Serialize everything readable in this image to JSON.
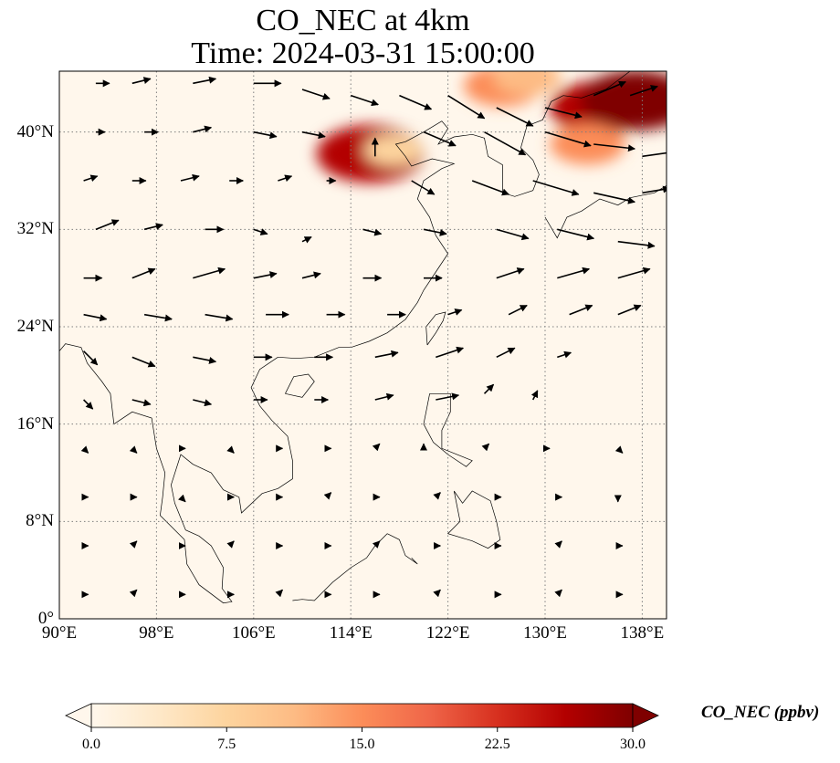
{
  "title": {
    "line1": "CO_NEC at 4km",
    "line2": "Time: 2024-03-31 15:00:00"
  },
  "map": {
    "extent": {
      "lon": [
        90,
        140
      ],
      "lat": [
        0,
        45
      ]
    },
    "lon_ticks": [
      {
        "value": 90,
        "label": "90°E"
      },
      {
        "value": 98,
        "label": "98°E"
      },
      {
        "value": 106,
        "label": "106°E"
      },
      {
        "value": 114,
        "label": "114°E"
      },
      {
        "value": 122,
        "label": "122°E"
      },
      {
        "value": 130,
        "label": "130°E"
      },
      {
        "value": 138,
        "label": "138°E"
      }
    ],
    "lat_ticks": [
      {
        "value": 0,
        "label": "0°"
      },
      {
        "value": 8,
        "label": "8°N"
      },
      {
        "value": 16,
        "label": "16°N"
      },
      {
        "value": 24,
        "label": "24°N"
      },
      {
        "value": 32,
        "label": "32°N"
      },
      {
        "value": 40,
        "label": "40°N"
      }
    ],
    "gridlines": true,
    "background_color": "#fff7ec",
    "plumes": [
      {
        "lon": 115.6,
        "lat": 38.2,
        "value": 28
      },
      {
        "lon": 117.5,
        "lat": 38.5,
        "value": 8
      },
      {
        "lon": 126.5,
        "lat": 43.8,
        "value": 16
      },
      {
        "lon": 128.5,
        "lat": 44.5,
        "value": 12
      },
      {
        "lon": 134.5,
        "lat": 42.0,
        "value": 25
      },
      {
        "lon": 137.5,
        "lat": 42.6,
        "value": 30
      },
      {
        "lon": 133.5,
        "lat": 39.0,
        "value": 15
      }
    ],
    "wind_vectors": [
      {
        "lon": 93,
        "lat": 44,
        "u": 3,
        "v": 0
      },
      {
        "lon": 96,
        "lat": 44,
        "u": 4,
        "v": 1
      },
      {
        "lon": 101,
        "lat": 44,
        "u": 5,
        "v": 1
      },
      {
        "lon": 106,
        "lat": 44,
        "u": 6,
        "v": 0
      },
      {
        "lon": 110,
        "lat": 43.5,
        "u": 6,
        "v": -2
      },
      {
        "lon": 114,
        "lat": 43,
        "u": 6,
        "v": -2
      },
      {
        "lon": 118,
        "lat": 43,
        "u": 7,
        "v": -3
      },
      {
        "lon": 122,
        "lat": 43,
        "u": 8,
        "v": -5
      },
      {
        "lon": 126,
        "lat": 42,
        "u": 8,
        "v": -4
      },
      {
        "lon": 130,
        "lat": 42,
        "u": 8,
        "v": -2
      },
      {
        "lon": 134,
        "lat": 43,
        "u": 7,
        "v": 3
      },
      {
        "lon": 137,
        "lat": 43,
        "u": 6,
        "v": 2
      },
      {
        "lon": 93,
        "lat": 40,
        "u": 2,
        "v": 0
      },
      {
        "lon": 97,
        "lat": 40,
        "u": 3,
        "v": 0
      },
      {
        "lon": 101,
        "lat": 40,
        "u": 4,
        "v": 1
      },
      {
        "lon": 106,
        "lat": 40,
        "u": 5,
        "v": -1
      },
      {
        "lon": 110,
        "lat": 40,
        "u": 5,
        "v": -1
      },
      {
        "lon": 116,
        "lat": 38,
        "u": 0,
        "v": 4
      },
      {
        "lon": 120,
        "lat": 40,
        "u": 7,
        "v": -3
      },
      {
        "lon": 125,
        "lat": 40,
        "u": 9,
        "v": -5
      },
      {
        "lon": 130,
        "lat": 40,
        "u": 10,
        "v": -3
      },
      {
        "lon": 134,
        "lat": 39,
        "u": 9,
        "v": -1
      },
      {
        "lon": 138,
        "lat": 38,
        "u": 7,
        "v": 1
      },
      {
        "lon": 92,
        "lat": 36,
        "u": 3,
        "v": 1
      },
      {
        "lon": 96,
        "lat": 36,
        "u": 3,
        "v": 0
      },
      {
        "lon": 100,
        "lat": 36,
        "u": 4,
        "v": 1
      },
      {
        "lon": 104,
        "lat": 36,
        "u": 3,
        "v": 0
      },
      {
        "lon": 108,
        "lat": 36,
        "u": 3,
        "v": 1
      },
      {
        "lon": 112,
        "lat": 36,
        "u": 2,
        "v": 0
      },
      {
        "lon": 119,
        "lat": 36,
        "u": 5,
        "v": -3
      },
      {
        "lon": 124,
        "lat": 36,
        "u": 8,
        "v": -3
      },
      {
        "lon": 129,
        "lat": 36,
        "u": 10,
        "v": -3
      },
      {
        "lon": 134,
        "lat": 35,
        "u": 9,
        "v": -2
      },
      {
        "lon": 138,
        "lat": 35,
        "u": 6,
        "v": 1
      },
      {
        "lon": 93,
        "lat": 32,
        "u": 5,
        "v": 2
      },
      {
        "lon": 97,
        "lat": 32,
        "u": 4,
        "v": 1
      },
      {
        "lon": 102,
        "lat": 32,
        "u": 4,
        "v": 0
      },
      {
        "lon": 106,
        "lat": 32,
        "u": 3,
        "v": -1
      },
      {
        "lon": 110,
        "lat": 31,
        "u": 2,
        "v": 1
      },
      {
        "lon": 115,
        "lat": 32,
        "u": 4,
        "v": -1
      },
      {
        "lon": 120,
        "lat": 32,
        "u": 5,
        "v": -1
      },
      {
        "lon": 126,
        "lat": 32,
        "u": 7,
        "v": -2
      },
      {
        "lon": 131,
        "lat": 32,
        "u": 8,
        "v": -2
      },
      {
        "lon": 136,
        "lat": 31,
        "u": 8,
        "v": -1
      },
      {
        "lon": 92,
        "lat": 28,
        "u": 4,
        "v": 0
      },
      {
        "lon": 96,
        "lat": 28,
        "u": 5,
        "v": 2
      },
      {
        "lon": 101,
        "lat": 28,
        "u": 7,
        "v": 2
      },
      {
        "lon": 106,
        "lat": 28,
        "u": 5,
        "v": 1
      },
      {
        "lon": 110,
        "lat": 28,
        "u": 4,
        "v": 1
      },
      {
        "lon": 115,
        "lat": 28,
        "u": 4,
        "v": 0
      },
      {
        "lon": 120,
        "lat": 28,
        "u": 4,
        "v": 0
      },
      {
        "lon": 126,
        "lat": 28,
        "u": 6,
        "v": 2
      },
      {
        "lon": 131,
        "lat": 28,
        "u": 7,
        "v": 2
      },
      {
        "lon": 136,
        "lat": 28,
        "u": 7,
        "v": 2
      },
      {
        "lon": 92,
        "lat": 25,
        "u": 5,
        "v": -1
      },
      {
        "lon": 97,
        "lat": 25,
        "u": 6,
        "v": -1
      },
      {
        "lon": 102,
        "lat": 25,
        "u": 6,
        "v": -1
      },
      {
        "lon": 107,
        "lat": 25,
        "u": 5,
        "v": 0
      },
      {
        "lon": 112,
        "lat": 25,
        "u": 4,
        "v": 0
      },
      {
        "lon": 117,
        "lat": 25,
        "u": 4,
        "v": 0
      },
      {
        "lon": 122,
        "lat": 25,
        "u": 3,
        "v": 1
      },
      {
        "lon": 127,
        "lat": 25,
        "u": 4,
        "v": 2
      },
      {
        "lon": 132,
        "lat": 25,
        "u": 5,
        "v": 2
      },
      {
        "lon": 136,
        "lat": 25,
        "u": 5,
        "v": 2
      },
      {
        "lon": 92,
        "lat": 22,
        "u": 3,
        "v": -3
      },
      {
        "lon": 96,
        "lat": 21.5,
        "u": 5,
        "v": -2
      },
      {
        "lon": 101,
        "lat": 21.5,
        "u": 5,
        "v": -1
      },
      {
        "lon": 106,
        "lat": 21.5,
        "u": 4,
        "v": 0
      },
      {
        "lon": 111,
        "lat": 21.5,
        "u": 4,
        "v": 0
      },
      {
        "lon": 116,
        "lat": 21.5,
        "u": 5,
        "v": 1
      },
      {
        "lon": 121,
        "lat": 21.5,
        "u": 6,
        "v": 2
      },
      {
        "lon": 126,
        "lat": 21.5,
        "u": 4,
        "v": 2
      },
      {
        "lon": 131,
        "lat": 21.5,
        "u": 3,
        "v": 1
      },
      {
        "lon": 92,
        "lat": 18,
        "u": 2,
        "v": -2
      },
      {
        "lon": 96,
        "lat": 18,
        "u": 4,
        "v": -1
      },
      {
        "lon": 101,
        "lat": 18,
        "u": 4,
        "v": -1
      },
      {
        "lon": 106,
        "lat": 18,
        "u": 3,
        "v": 0
      },
      {
        "lon": 111,
        "lat": 18,
        "u": 3,
        "v": 0
      },
      {
        "lon": 116,
        "lat": 18,
        "u": 4,
        "v": 1
      },
      {
        "lon": 121,
        "lat": 18,
        "u": 5,
        "v": 1
      },
      {
        "lon": 125,
        "lat": 18.5,
        "u": 2,
        "v": 2
      },
      {
        "lon": 129,
        "lat": 18,
        "u": 1,
        "v": 2
      },
      {
        "lon": 92,
        "lat": 14,
        "u": 1,
        "v": -1
      },
      {
        "lon": 96,
        "lat": 14,
        "u": 1,
        "v": -1
      },
      {
        "lon": 100,
        "lat": 14,
        "u": 1,
        "v": 0
      },
      {
        "lon": 104,
        "lat": 14,
        "u": 1,
        "v": -1
      },
      {
        "lon": 108,
        "lat": 14,
        "u": 1,
        "v": 0
      },
      {
        "lon": 112,
        "lat": 14,
        "u": 1,
        "v": 0
      },
      {
        "lon": 116,
        "lat": 14,
        "u": 1,
        "v": 1
      },
      {
        "lon": 120,
        "lat": 14,
        "u": 0,
        "v": 1
      },
      {
        "lon": 125,
        "lat": 14,
        "u": 1,
        "v": 1
      },
      {
        "lon": 130,
        "lat": 14,
        "u": 1,
        "v": 0
      },
      {
        "lon": 136,
        "lat": 14,
        "u": 1,
        "v": -1
      },
      {
        "lon": 92,
        "lat": 10,
        "u": 1,
        "v": 0
      },
      {
        "lon": 96,
        "lat": 10,
        "u": 1,
        "v": 0
      },
      {
        "lon": 100,
        "lat": 10,
        "u": 1,
        "v": -1
      },
      {
        "lon": 104,
        "lat": 10,
        "u": 1,
        "v": 0
      },
      {
        "lon": 108,
        "lat": 10,
        "u": 1,
        "v": 0
      },
      {
        "lon": 112,
        "lat": 10,
        "u": 1,
        "v": 1
      },
      {
        "lon": 116,
        "lat": 10,
        "u": 1,
        "v": 0
      },
      {
        "lon": 121,
        "lat": 10,
        "u": 1,
        "v": 1
      },
      {
        "lon": 126,
        "lat": 10,
        "u": 1,
        "v": 0
      },
      {
        "lon": 131,
        "lat": 10,
        "u": 1,
        "v": 0
      },
      {
        "lon": 136,
        "lat": 10,
        "u": 0,
        "v": -1
      },
      {
        "lon": 92,
        "lat": 6,
        "u": 1,
        "v": 0
      },
      {
        "lon": 96,
        "lat": 6,
        "u": 1,
        "v": 1
      },
      {
        "lon": 100,
        "lat": 6,
        "u": 1,
        "v": 0
      },
      {
        "lon": 104,
        "lat": 6,
        "u": 1,
        "v": 1
      },
      {
        "lon": 108,
        "lat": 6,
        "u": 1,
        "v": 0
      },
      {
        "lon": 112,
        "lat": 6,
        "u": 1,
        "v": 0
      },
      {
        "lon": 116,
        "lat": 6,
        "u": 1,
        "v": 1
      },
      {
        "lon": 121,
        "lat": 6,
        "u": 1,
        "v": 0
      },
      {
        "lon": 126,
        "lat": 6,
        "u": 1,
        "v": 0
      },
      {
        "lon": 131,
        "lat": 6,
        "u": 1,
        "v": 1
      },
      {
        "lon": 136,
        "lat": 6,
        "u": 1,
        "v": 0
      },
      {
        "lon": 92,
        "lat": 2,
        "u": 1,
        "v": 0
      },
      {
        "lon": 96,
        "lat": 2,
        "u": 1,
        "v": 1
      },
      {
        "lon": 100,
        "lat": 2,
        "u": 1,
        "v": 0
      },
      {
        "lon": 104,
        "lat": 2,
        "u": 1,
        "v": 0
      },
      {
        "lon": 108,
        "lat": 2,
        "u": 1,
        "v": 1
      },
      {
        "lon": 112,
        "lat": 2,
        "u": 1,
        "v": 0
      },
      {
        "lon": 116,
        "lat": 2,
        "u": 1,
        "v": 0
      },
      {
        "lon": 121,
        "lat": 2,
        "u": 1,
        "v": 1
      },
      {
        "lon": 126,
        "lat": 2,
        "u": 1,
        "v": 0
      },
      {
        "lon": 131,
        "lat": 2,
        "u": 1,
        "v": 1
      },
      {
        "lon": 136,
        "lat": 2,
        "u": 1,
        "v": 0
      }
    ]
  },
  "colorbar": {
    "title": "CO_NEC (ppbv)",
    "min": 0,
    "max": 30,
    "ticks": [
      {
        "value": 0,
        "label": "0.0"
      },
      {
        "value": 7.5,
        "label": "7.5"
      },
      {
        "value": 15,
        "label": "15.0"
      },
      {
        "value": 22.5,
        "label": "22.5"
      },
      {
        "value": 30,
        "label": "30.0"
      }
    ],
    "colors": [
      "#fff7ec",
      "#fee8c8",
      "#fdd49e",
      "#fdbb84",
      "#fc8d59",
      "#ef6548",
      "#d7301f",
      "#b30000",
      "#7f0000"
    ],
    "extend": "both"
  }
}
